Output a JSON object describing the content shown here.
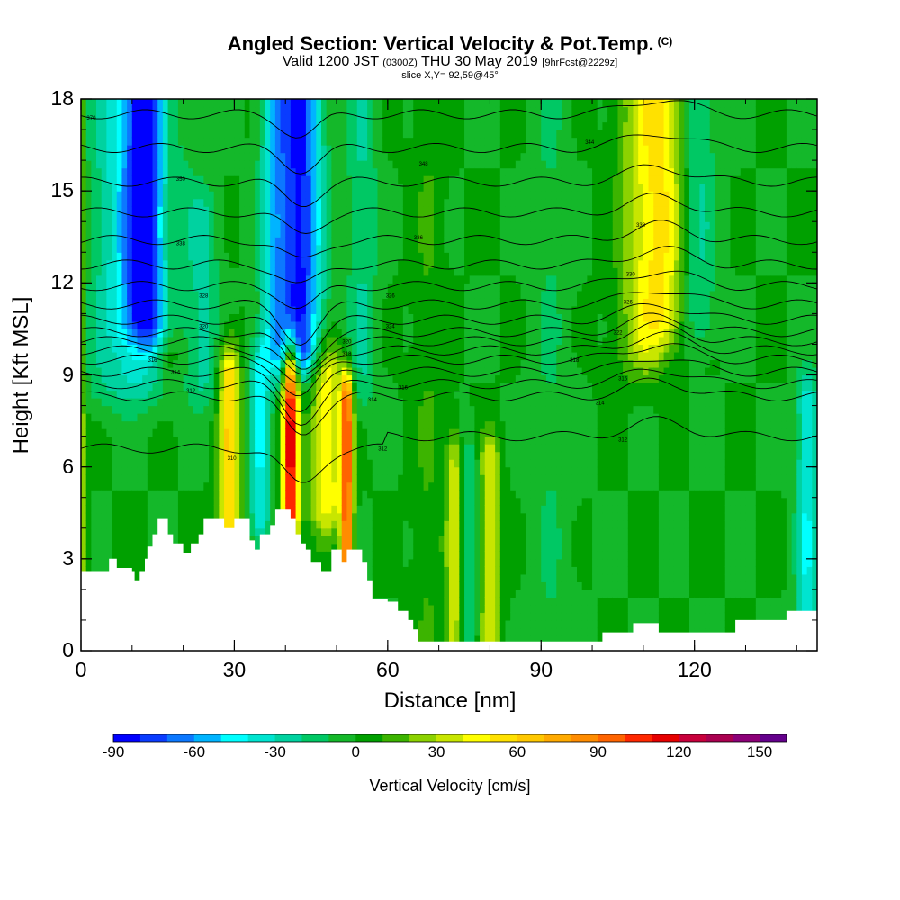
{
  "title": {
    "main": "Angled Section: Vertical Velocity & Pot.Temp.",
    "main_units": "(C)",
    "valid_prefix": "Valid 1200 JST",
    "valid_utc": "(0300Z)",
    "valid_date": "THU 30 May 2019",
    "valid_fcst": "[9hrFcst@2229z]",
    "slice": "slice X,Y= 92,59@45°"
  },
  "chart_data": {
    "type": "heatmap",
    "description_of_fields": "vertical velocity shaded, potential temperature contoured",
    "xlabel": "Distance [nm]",
    "ylabel": "Height [Kft MSL]",
    "xlim": [
      0,
      144
    ],
    "ylim": [
      0,
      18
    ],
    "xticks": [
      0,
      30,
      60,
      90,
      120
    ],
    "yticks": [
      0,
      3,
      6,
      9,
      12,
      15,
      18
    ],
    "colorbar": {
      "title": "Vertical Velocity [cm/s]",
      "levels": [
        -90,
        -80,
        -70,
        -60,
        -50,
        -40,
        -30,
        -20,
        -10,
        0,
        10,
        20,
        30,
        40,
        50,
        60,
        70,
        80,
        90,
        100,
        110,
        120,
        130,
        140,
        150
      ],
      "tick_labels": [
        "-90",
        "-60",
        "-30",
        "0",
        "30",
        "60",
        "90",
        "120",
        "150"
      ],
      "colors": [
        "#0000ff",
        "#0a3cff",
        "#0c78ff",
        "#00b4ff",
        "#00ffff",
        "#00e4d0",
        "#00d2a0",
        "#00c864",
        "#14b82a",
        "#00a000",
        "#3cb400",
        "#8cd200",
        "#c8e600",
        "#ffff00",
        "#ffe100",
        "#ffc800",
        "#ffaa00",
        "#ff8c00",
        "#ff6400",
        "#ff2800",
        "#e60000",
        "#c8003c",
        "#aa0050",
        "#8c0078",
        "#64008c"
      ]
    },
    "terrain_profile_kft": [
      [
        0,
        2.6
      ],
      [
        5.5,
        2.6
      ],
      [
        5.5,
        3.0
      ],
      [
        7,
        3.0
      ],
      [
        7,
        2.7
      ],
      [
        10,
        2.7
      ],
      [
        10,
        2.6
      ],
      [
        10.5,
        2.6
      ],
      [
        10.5,
        2.3
      ],
      [
        11.5,
        2.3
      ],
      [
        11.5,
        2.6
      ],
      [
        12.5,
        2.6
      ],
      [
        12.5,
        3.0
      ],
      [
        13,
        3.0
      ],
      [
        13,
        3.4
      ],
      [
        14,
        3.4
      ],
      [
        14,
        3.8
      ],
      [
        15,
        3.8
      ],
      [
        15,
        4.3
      ],
      [
        17,
        4.3
      ],
      [
        17,
        3.8
      ],
      [
        18,
        3.8
      ],
      [
        18,
        3.5
      ],
      [
        20,
        3.5
      ],
      [
        20,
        3.2
      ],
      [
        21.5,
        3.2
      ],
      [
        21.5,
        3.5
      ],
      [
        23,
        3.5
      ],
      [
        23,
        3.8
      ],
      [
        24,
        3.8
      ],
      [
        24,
        4.3
      ],
      [
        28,
        4.3
      ],
      [
        28,
        4.0
      ],
      [
        30,
        4.0
      ],
      [
        30,
        4.3
      ],
      [
        33,
        4.3
      ],
      [
        33,
        3.6
      ],
      [
        34,
        3.6
      ],
      [
        34,
        3.3
      ],
      [
        35,
        3.3
      ],
      [
        35,
        3.8
      ],
      [
        37,
        3.8
      ],
      [
        37,
        4.1
      ],
      [
        38,
        4.1
      ],
      [
        38,
        4.6
      ],
      [
        41,
        4.6
      ],
      [
        41,
        4.3
      ],
      [
        42,
        4.3
      ],
      [
        42,
        3.8
      ],
      [
        43,
        3.8
      ],
      [
        43,
        3.5
      ],
      [
        44,
        3.5
      ],
      [
        44,
        3.3
      ],
      [
        45,
        3.3
      ],
      [
        45,
        2.9
      ],
      [
        47,
        2.9
      ],
      [
        47,
        2.6
      ],
      [
        49,
        2.6
      ],
      [
        49,
        3.3
      ],
      [
        51,
        3.3
      ],
      [
        51,
        2.9
      ],
      [
        52,
        2.9
      ],
      [
        52,
        3.3
      ],
      [
        55,
        3.3
      ],
      [
        55,
        2.9
      ],
      [
        56,
        2.9
      ],
      [
        56,
        2.3
      ],
      [
        57,
        2.3
      ],
      [
        57,
        1.7
      ],
      [
        60,
        1.7
      ],
      [
        60,
        1.6
      ],
      [
        62,
        1.6
      ],
      [
        62,
        1.3
      ],
      [
        64,
        1.3
      ],
      [
        64,
        1.0
      ],
      [
        65,
        1.0
      ],
      [
        65,
        0.7
      ],
      [
        66,
        0.7
      ],
      [
        66,
        0.3
      ],
      [
        102,
        0.3
      ],
      [
        102,
        0.6
      ],
      [
        108,
        0.6
      ],
      [
        108,
        0.9
      ],
      [
        113,
        0.9
      ],
      [
        113,
        0.6
      ],
      [
        128,
        0.6
      ],
      [
        128,
        1.0
      ],
      [
        138,
        1.0
      ],
      [
        138,
        1.3
      ],
      [
        144,
        1.3
      ]
    ],
    "theta_contour_labels": [
      {
        "x": 2,
        "y": 17.4,
        "text": "370"
      },
      {
        "x": 19.5,
        "y": 15.4,
        "text": "350"
      },
      {
        "x": 19.5,
        "y": 13.3,
        "text": "338"
      },
      {
        "x": 24,
        "y": 11.6,
        "text": "328"
      },
      {
        "x": 24,
        "y": 10.6,
        "text": "320"
      },
      {
        "x": 14,
        "y": 9.5,
        "text": "316"
      },
      {
        "x": 18.5,
        "y": 9.1,
        "text": "314"
      },
      {
        "x": 21.5,
        "y": 8.5,
        "text": "312"
      },
      {
        "x": 29.5,
        "y": 6.3,
        "text": "310"
      },
      {
        "x": 67,
        "y": 15.9,
        "text": "348"
      },
      {
        "x": 66,
        "y": 13.5,
        "text": "336"
      },
      {
        "x": 60.5,
        "y": 11.6,
        "text": "326"
      },
      {
        "x": 60.5,
        "y": 10.6,
        "text": "324"
      },
      {
        "x": 52,
        "y": 10.1,
        "text": "320"
      },
      {
        "x": 52,
        "y": 9.7,
        "text": "318"
      },
      {
        "x": 63,
        "y": 8.6,
        "text": "316"
      },
      {
        "x": 57,
        "y": 8.2,
        "text": "314"
      },
      {
        "x": 59,
        "y": 6.6,
        "text": "312"
      },
      {
        "x": 99.5,
        "y": 16.6,
        "text": "344"
      },
      {
        "x": 109.5,
        "y": 13.9,
        "text": "338"
      },
      {
        "x": 107.5,
        "y": 12.3,
        "text": "330"
      },
      {
        "x": 107,
        "y": 11.4,
        "text": "326"
      },
      {
        "x": 105,
        "y": 10.4,
        "text": "322"
      },
      {
        "x": 96.5,
        "y": 9.5,
        "text": "318"
      },
      {
        "x": 106,
        "y": 8.9,
        "text": "316"
      },
      {
        "x": 101.5,
        "y": 8.1,
        "text": "314"
      },
      {
        "x": 106,
        "y": 6.9,
        "text": "312"
      }
    ]
  }
}
